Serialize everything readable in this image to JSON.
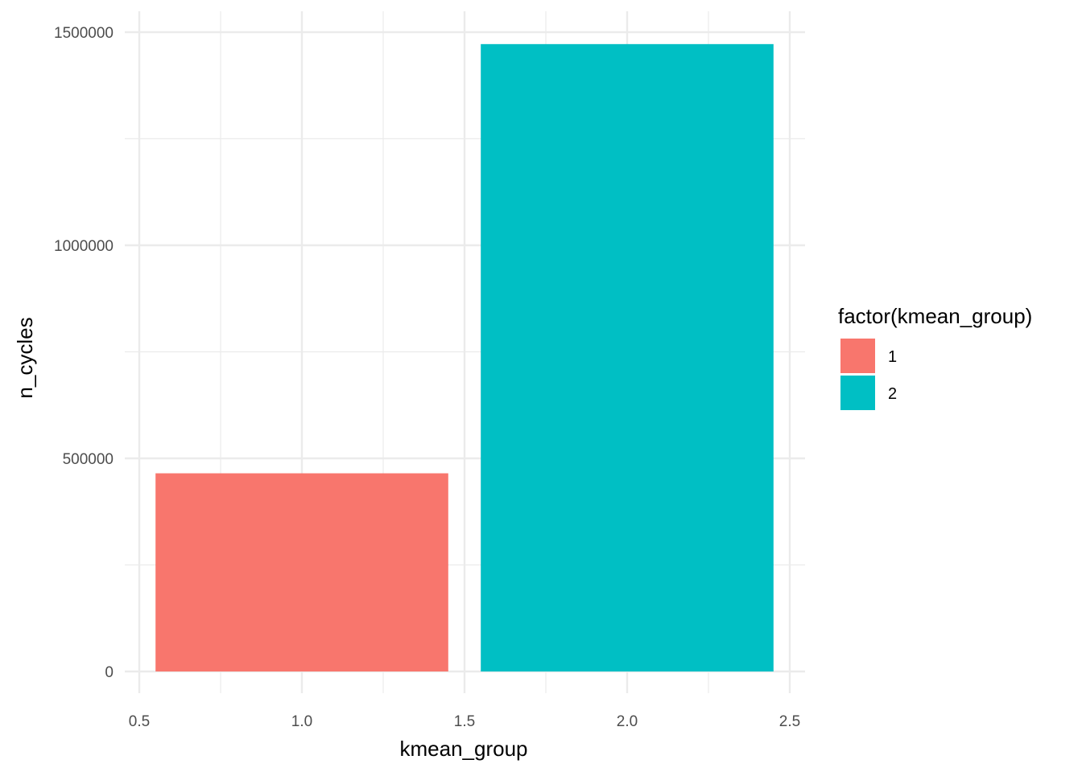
{
  "chart_data": {
    "type": "bar",
    "xlabel": "kmean_group",
    "ylabel": "n_cycles",
    "x": [
      1,
      2
    ],
    "values": [
      465000,
      1472000
    ],
    "bar_width": 0.9,
    "colors": [
      "#F8766D",
      "#00BFC4"
    ],
    "xlim": [
      0.5,
      2.5
    ],
    "ylim": [
      0,
      1500000
    ],
    "x_ticks": [
      0.5,
      1.0,
      1.5,
      2.0,
      2.5
    ],
    "x_tick_labels": [
      "0.5",
      "1.0",
      "1.5",
      "2.0",
      "2.5"
    ],
    "y_ticks": [
      0,
      500000,
      1000000,
      1500000
    ],
    "y_tick_labels": [
      "0",
      "500000",
      "1000000",
      "1500000"
    ],
    "grid": true,
    "legend": {
      "title": "factor(kmean_group)",
      "position": "right",
      "entries": [
        {
          "label": "1",
          "color": "#F8766D"
        },
        {
          "label": "2",
          "color": "#00BFC4"
        }
      ]
    }
  }
}
